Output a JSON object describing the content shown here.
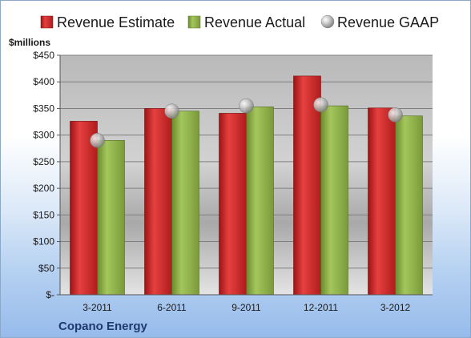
{
  "chart_data": {
    "type": "bar",
    "company": "Copano Energy",
    "ylabel": "$millions",
    "categories": [
      "3-2011",
      "6-2011",
      "9-2011",
      "12-2011",
      "3-2012"
    ],
    "series": [
      {
        "name": "Revenue Estimate",
        "kind": "bar",
        "color": "#d42a2a",
        "values": [
          326,
          350,
          341,
          411,
          351
        ]
      },
      {
        "name": "Revenue Actual",
        "kind": "bar",
        "color": "#8fb34a",
        "values": [
          290,
          345,
          353,
          355,
          336
        ]
      },
      {
        "name": "Revenue GAAP",
        "kind": "marker",
        "color": "#b8b8b8",
        "values": [
          290,
          345,
          355,
          357,
          338
        ]
      }
    ],
    "ylim": [
      0,
      450
    ],
    "yticks": [
      0,
      50,
      100,
      150,
      200,
      250,
      300,
      350,
      400,
      450
    ],
    "ytick_labels": [
      "$-",
      "$50",
      "$100",
      "$150",
      "$200",
      "$250",
      "$300",
      "$350",
      "$400",
      "$450"
    ],
    "grid": true,
    "legend_position": "top"
  }
}
